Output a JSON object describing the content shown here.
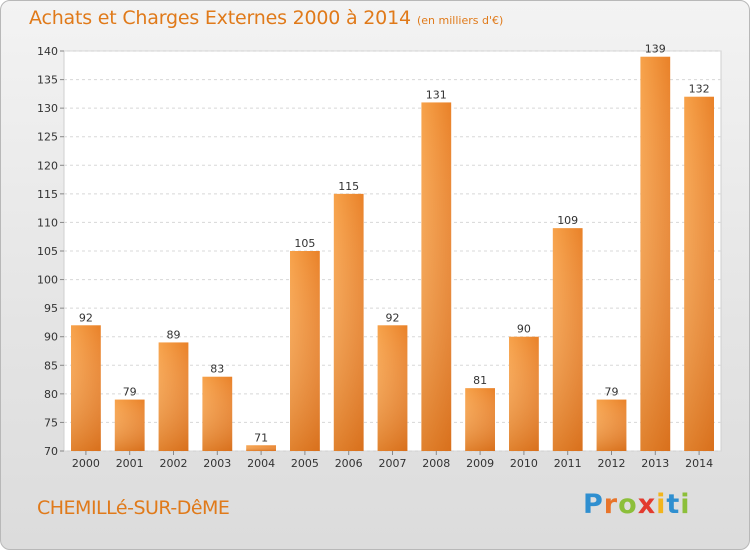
{
  "chart_data": {
    "type": "bar",
    "title": "Achats et Charges Externes 2000 à 2014",
    "subtitle": "(en milliers d'€)",
    "categories": [
      "2000",
      "2001",
      "2002",
      "2003",
      "2004",
      "2005",
      "2006",
      "2007",
      "2008",
      "2009",
      "2010",
      "2011",
      "2012",
      "2013",
      "2014"
    ],
    "values": [
      92,
      79,
      89,
      83,
      71,
      105,
      115,
      92,
      131,
      81,
      90,
      109,
      79,
      139,
      132
    ],
    "ylim": [
      70,
      140
    ],
    "yticks": [
      70,
      75,
      80,
      85,
      90,
      95,
      100,
      105,
      110,
      115,
      120,
      125,
      130,
      135,
      140
    ],
    "grid": true,
    "bar_color": "#f0923a"
  },
  "commune": "CHEMILLé-SUR-DêME",
  "logo": {
    "letters": [
      {
        "ch": "P",
        "color": "#2f8fd0"
      },
      {
        "ch": "r",
        "color": "#e8742a"
      },
      {
        "ch": "o",
        "color": "#8cbf3a"
      },
      {
        "ch": "x",
        "color": "#e33b2f"
      },
      {
        "ch": "i",
        "color": "#f2b51d"
      },
      {
        "ch": "t",
        "color": "#2f8fd0"
      },
      {
        "ch": "i",
        "color": "#8cbf3a"
      }
    ]
  }
}
